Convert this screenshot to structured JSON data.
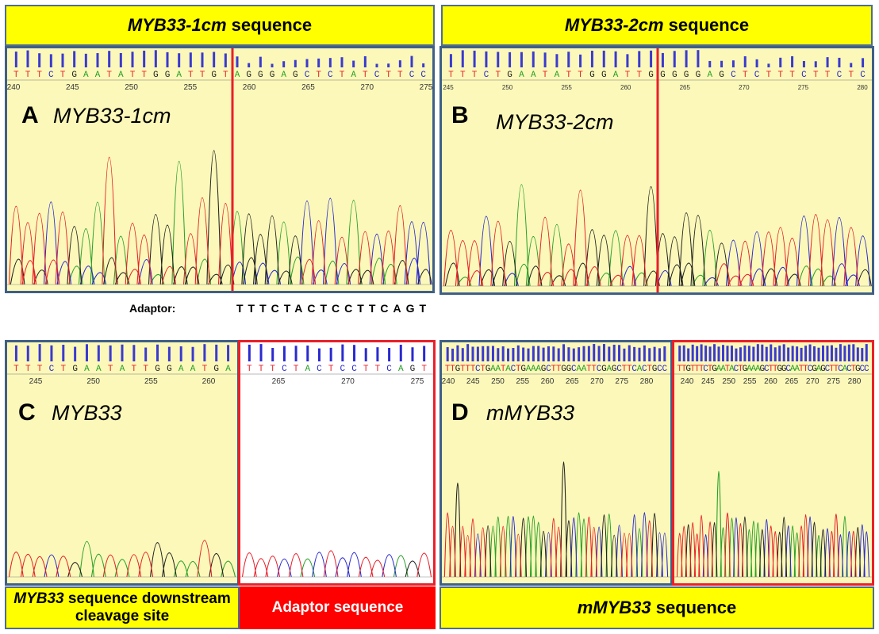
{
  "banners": {
    "a": {
      "gene": "MYB33-1cm",
      "suffix": " sequence"
    },
    "b": {
      "gene": "MYB33-2cm",
      "suffix": " sequence"
    },
    "c": {
      "gene": "MYB33",
      "suffix": " sequence downstream cleavage site"
    },
    "adaptor": {
      "text": "Adaptor sequence"
    },
    "d": {
      "gene": "mMYB33",
      "suffix": " sequence"
    }
  },
  "panels": {
    "a": {
      "letter": "A",
      "label": "MYB33-1cm",
      "sequence": "TTTCTGAATATTGGATTGTAGGGAGCTCTATCTTCC",
      "ticks": [
        "240",
        "245",
        "250",
        "255",
        "260",
        "265",
        "270",
        "275"
      ]
    },
    "b": {
      "letter": "B",
      "label": "MYB33-2cm",
      "sequence": "TTTCTGAATATTGGATTGGGGGAGCTCTTTCTTCTC",
      "ticks": [
        "245",
        "250",
        "255",
        "260",
        "265",
        "270",
        "275",
        "280"
      ]
    },
    "c": {
      "letter": "C",
      "label": "MYB33",
      "sequence": "TTTCTGAATATTGGAATGA",
      "ticks": [
        "245",
        "250",
        "255",
        "260"
      ]
    },
    "c2": {
      "sequence": "TTTCTACTCCTTCAGT",
      "ticks": [
        "265",
        "270",
        "275"
      ]
    },
    "d": {
      "letter": "D",
      "label": "mMYB33",
      "sequence": "TTGTTTCTGAATACTGAAAGCTTGGCAATTCGAGCTTCACTGCC",
      "ticks": [
        "240",
        "245",
        "250",
        "255",
        "260",
        "265",
        "270",
        "275",
        "280"
      ]
    }
  },
  "adaptor": {
    "label": "Adaptor:",
    "sequence": "TTTCTACTCCTTCAGT"
  },
  "colors": {
    "A": "#2aa02a",
    "C": "#2a2ad0",
    "G": "#222222",
    "T": "#e8202a",
    "panel_bg": "#fbf8b9",
    "banner_bg": "#ffff00",
    "border_blue": "#3f5f86",
    "border_red": "#e8202a"
  }
}
